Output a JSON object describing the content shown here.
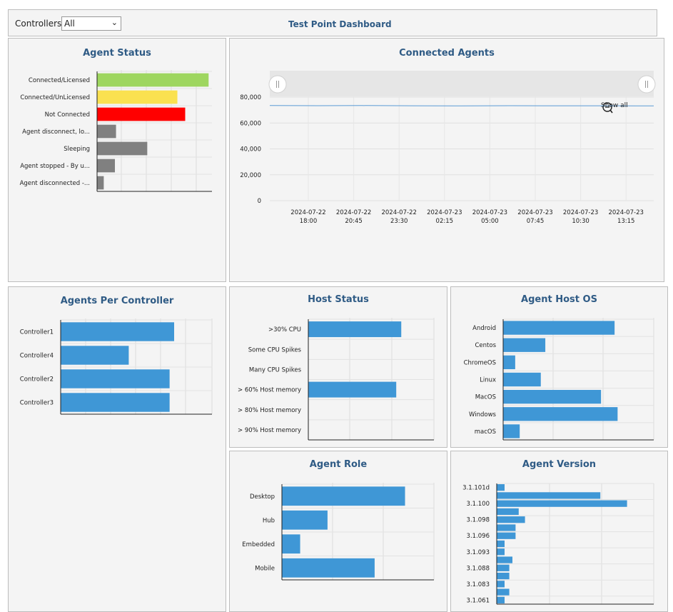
{
  "header": {
    "controllers_label": "Controllers:",
    "controllers_value": "All",
    "dashboard_title": "Test Point Dashboard"
  },
  "colors": {
    "green": "#9ed65f",
    "yellow": "#fae150",
    "red": "#ff0000",
    "gray": "#808080",
    "blue": "#3f97d6",
    "title": "#2f5b85"
  },
  "agent_status": {
    "title": "Agent Status",
    "chart_data": {
      "type": "bar",
      "orientation": "horizontal",
      "categories": [
        "Connected/Licensed",
        "Connected/UnLicensed",
        "Not Connected",
        "Agent disconnect, lo...",
        "Sleeping",
        "Agent stopped - By u...",
        "Agent disconnected -..."
      ],
      "values": [
        100,
        72,
        79,
        17,
        45,
        16,
        6
      ],
      "bar_colors": [
        "#9ed65f",
        "#fae150",
        "#ff0000",
        "#808080",
        "#808080",
        "#808080",
        "#808080"
      ],
      "xlim": [
        0,
        103
      ]
    }
  },
  "connected_agents": {
    "title": "Connected Agents",
    "show_all": "Show all",
    "chart_data": {
      "type": "line",
      "x_tick_labels": [
        [
          "2024-07-22",
          "18:00"
        ],
        [
          "2024-07-22",
          "20:45"
        ],
        [
          "2024-07-22",
          "23:30"
        ],
        [
          "2024-07-23",
          "02:15"
        ],
        [
          "2024-07-23",
          "05:00"
        ],
        [
          "2024-07-23",
          "07:45"
        ],
        [
          "2024-07-23",
          "10:30"
        ],
        [
          "2024-07-23",
          "13:15"
        ]
      ],
      "y_tick_labels": [
        "80,000",
        "60,000",
        "40,000",
        "20,000",
        "0"
      ],
      "ylim": [
        0,
        80000
      ],
      "series": [
        {
          "values": [
            73500,
            73400,
            73500,
            73300,
            73200,
            73400,
            73300,
            73300,
            73200
          ]
        }
      ]
    }
  },
  "agents_per_controller": {
    "title": "Agents Per Controller",
    "chart_data": {
      "type": "bar",
      "orientation": "horizontal",
      "categories": [
        "Controller1",
        "Controller4",
        "Controller2",
        "Controller3"
      ],
      "values": [
        75,
        45,
        72,
        72
      ],
      "xlim": [
        0,
        100
      ]
    }
  },
  "host_status": {
    "title": "Host Status",
    "chart_data": {
      "type": "bar",
      "orientation": "horizontal",
      "categories": [
        ">30% CPU",
        "Some CPU Spikes",
        "Many CPU Spikes",
        "> 60% Host memory",
        "> 80% Host memory",
        "> 90% Host memory"
      ],
      "values": [
        74,
        0,
        0,
        70,
        0,
        0
      ],
      "xlim": [
        0,
        100
      ]
    }
  },
  "agent_host_os": {
    "title": "Agent Host OS",
    "chart_data": {
      "type": "bar",
      "orientation": "horizontal",
      "categories": [
        "Android",
        "Centos",
        "ChromeOS",
        "Linux",
        "MacOS",
        "Windows",
        "macOS"
      ],
      "values": [
        74,
        28,
        8,
        25,
        65,
        76,
        11
      ],
      "xlim": [
        0,
        100
      ]
    }
  },
  "agent_role": {
    "title": "Agent Role",
    "chart_data": {
      "type": "bar",
      "orientation": "horizontal",
      "categories": [
        "Desktop",
        "Hub",
        "Embedded",
        "Mobile"
      ],
      "values": [
        81,
        30,
        12,
        61
      ],
      "xlim": [
        0,
        100
      ]
    }
  },
  "agent_version": {
    "title": "Agent Version",
    "chart_data": {
      "type": "bar",
      "orientation": "horizontal",
      "tick_labels": [
        "3.1.101d",
        "3.1.100",
        "3.1.098",
        "3.1.096",
        "3.1.093",
        "3.1.088",
        "3.1.083",
        "3.1.061"
      ],
      "values": [
        5,
        66,
        83,
        14,
        18,
        12,
        12,
        5,
        5,
        10,
        8,
        8,
        5,
        8,
        5
      ],
      "xlim": [
        0,
        100
      ]
    }
  }
}
